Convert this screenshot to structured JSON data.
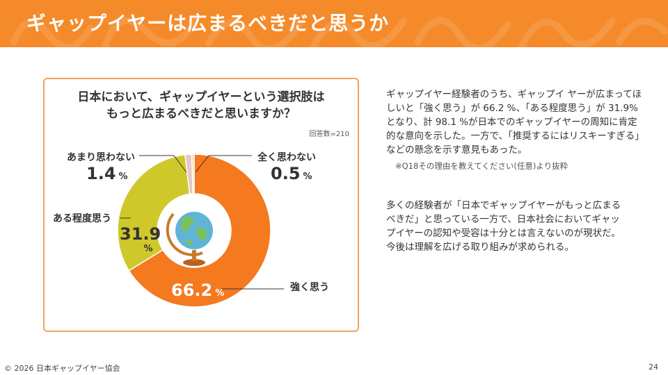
{
  "header": {
    "title": "ギャップイヤーは広まるべきだと思うか"
  },
  "card": {
    "question_line1": "日本において、ギャップイヤーという選択肢は",
    "question_line2": "もっと広まるべきだと思いますか？",
    "respondents": "回答数=210"
  },
  "colors": {
    "header": "#f58a2a",
    "strong": "#f5791f",
    "somewhat": "#cfc82b",
    "not_much": "#e8c7c7",
    "not_at_all": "#f3dca0"
  },
  "chart_data": {
    "type": "pie",
    "variant": "donut",
    "unit": "%",
    "categories": [
      "強く思う",
      "ある程度思う",
      "あまり思わない",
      "全く思わない"
    ],
    "values": [
      66.2,
      31.9,
      1.4,
      0.5
    ],
    "value_labels": [
      "66.2",
      "31.9",
      "1.4",
      "0.5"
    ],
    "center_icon": "globe-icon"
  },
  "text": {
    "para1": "ギャップイヤー経験者のうち、ギャップイ ヤーが広まってほしいと「強く思う」が 66.2 %、「ある程度思う」が 31.9%となり、計 98.1 %が日本でのギャップイヤーの周知に肯定的な意向を示した。一方で、「推奨するにはリスキーすぎる」などの懸念を示す意見もあった。",
    "note": "※Q18その理由を教えてください(任意)より抜粋",
    "para2": "多くの経験者が「日本でギャップイヤーがもっと広まるべきだ」と思っている一方で、日本社会においてギャップイヤーの認知や受容は十分とは言えないのが現状だ。今後は理解を広げる取り組みが求められる。"
  },
  "footer": {
    "copyright": "© 2026 日本ギャップイヤー協会",
    "page": "24"
  }
}
